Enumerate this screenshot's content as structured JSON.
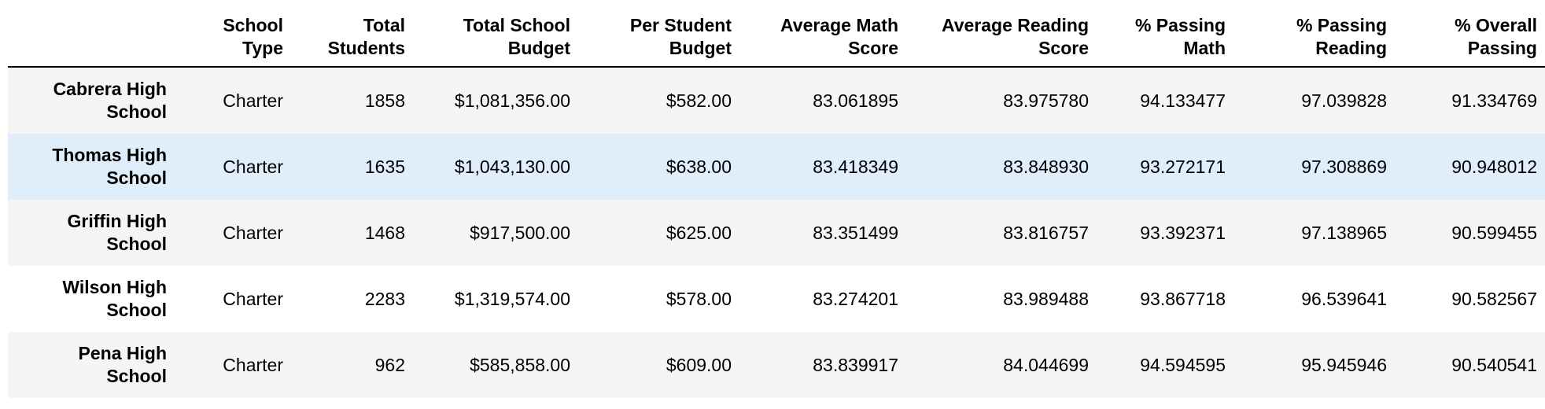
{
  "table": {
    "index_header": "",
    "columns": [
      "School Type",
      "Total Students",
      "Total School Budget",
      "Per Student Budget",
      "Average Math Score",
      "Average Reading Score",
      "% Passing Math",
      "% Passing Reading",
      "% Overall Passing"
    ],
    "rows": [
      {
        "name": "Cabrera High School",
        "cells": [
          "Charter",
          "1858",
          "$1,081,356.00",
          "$582.00",
          "83.061895",
          "83.975780",
          "94.133477",
          "97.039828",
          "91.334769"
        ]
      },
      {
        "name": "Thomas High School",
        "cells": [
          "Charter",
          "1635",
          "$1,043,130.00",
          "$638.00",
          "83.418349",
          "83.848930",
          "93.272171",
          "97.308869",
          "90.948012"
        ]
      },
      {
        "name": "Griffin High School",
        "cells": [
          "Charter",
          "1468",
          "$917,500.00",
          "$625.00",
          "83.351499",
          "83.816757",
          "93.392371",
          "97.138965",
          "90.599455"
        ]
      },
      {
        "name": "Wilson High School",
        "cells": [
          "Charter",
          "2283",
          "$1,319,574.00",
          "$578.00",
          "83.274201",
          "83.989488",
          "93.867718",
          "96.539641",
          "90.582567"
        ]
      },
      {
        "name": "Pena High School",
        "cells": [
          "Charter",
          "962",
          "$585,858.00",
          "$609.00",
          "83.839917",
          "84.044699",
          "94.594595",
          "95.945946",
          "90.540541"
        ]
      }
    ],
    "highlighted_row": 1,
    "colors": {
      "odd_row": "#f5f5f5",
      "even_row": "#ffffff",
      "highlight_row": "#e0eefc",
      "header_rule": "#000000"
    }
  }
}
